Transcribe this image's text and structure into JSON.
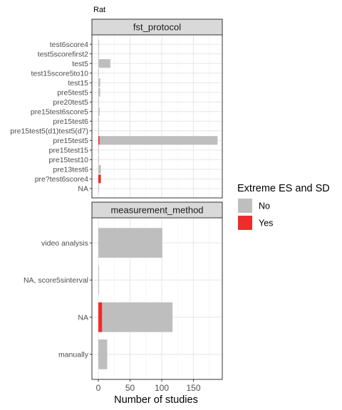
{
  "chart_data": {
    "type": "bar",
    "orientation": "horizontal",
    "stacked": true,
    "title": "Rat",
    "xlabel": "Number of studies",
    "xlim": [
      0,
      190
    ],
    "xticks": [
      0,
      50,
      100,
      150
    ],
    "grid": true,
    "legend": {
      "title": "Extreme ES and SD",
      "placement": "right",
      "entries": [
        {
          "name": "No",
          "color": "#bebebe"
        },
        {
          "name": "Yes",
          "color": "#ee2c2c"
        }
      ]
    },
    "panels": [
      {
        "name": "fst_protocol",
        "categories": [
          "test6score4",
          "test5scorefirst2",
          "test5",
          "test15score5to10",
          "test15",
          "pre5test5",
          "pre20test5",
          "pre15test6score5",
          "pre15test6",
          "pre15test5(d1)test5(d7)",
          "pre15test5",
          "pre15test15",
          "pre15test10",
          "pre13test6",
          "pre?test6score4",
          "NA"
        ],
        "series": [
          {
            "name": "No",
            "values": [
              1,
              1,
              19,
              1,
              3,
              3,
              1,
              2,
              1,
              1,
              186,
              1,
              1,
              4,
              0,
              1
            ]
          },
          {
            "name": "Yes",
            "values": [
              0,
              0,
              0,
              0,
              0,
              0,
              0,
              0,
              0,
              0,
              2,
              0,
              0,
              0,
              4,
              0
            ]
          }
        ]
      },
      {
        "name": "measurement_method",
        "categories": [
          "video analysis",
          "NA, score5sinterval",
          "NA",
          "manually"
        ],
        "series": [
          {
            "name": "No",
            "values": [
              101,
              1,
              111,
              14
            ]
          },
          {
            "name": "Yes",
            "values": [
              0,
              0,
              6,
              0
            ]
          }
        ]
      }
    ]
  }
}
